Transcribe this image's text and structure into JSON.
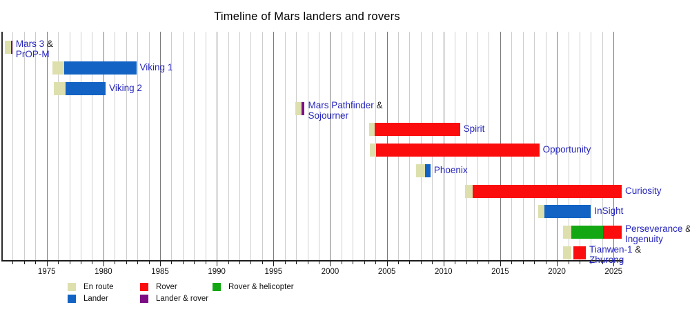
{
  "title": "Timeline of Mars landers and rovers",
  "colors": {
    "en_route": "#dde0ad",
    "lander": "#1263c4",
    "rover": "#fb0d0d",
    "lander_rover": "#7d0d85",
    "rover_helicopter": "#13a813",
    "label_text": "#2626bd",
    "grid_minor": "#cdcdcd",
    "grid_major": "#7a7a7a",
    "axis": "#1a1a1a"
  },
  "legend": {
    "items": [
      {
        "key": "en_route",
        "label": "En route"
      },
      {
        "key": "lander",
        "label": "Lander"
      },
      {
        "key": "rover",
        "label": "Rover"
      },
      {
        "key": "lander_rover",
        "label": "Lander & rover"
      },
      {
        "key": "rover_helicopter",
        "label": "Rover & helicopter"
      }
    ]
  },
  "chart_data": {
    "type": "gantt-timeline",
    "title": "Timeline of Mars landers and rovers",
    "x_axis": {
      "min_year": 1971,
      "max_year": 2026,
      "gridline_every_years": 1,
      "major_every_years": 5,
      "tick_labels": [
        1975,
        1980,
        1985,
        1990,
        1995,
        2000,
        2005,
        2010,
        2015,
        2020,
        2025
      ]
    },
    "legend_position": "bottom-left",
    "grid": true,
    "missions": [
      {
        "name": "Mars 3",
        "amp": "&",
        "name2": "PrOP-M",
        "segments": [
          {
            "type": "en_route",
            "start": 1971.3,
            "end": 1971.85
          },
          {
            "type": "lander_rover",
            "start": 1971.85,
            "end": 1971.97
          }
        ]
      },
      {
        "name": "Viking 1",
        "amp": "",
        "name2": "",
        "segments": [
          {
            "type": "en_route",
            "start": 1975.5,
            "end": 1976.55
          },
          {
            "type": "lander",
            "start": 1976.55,
            "end": 1982.9
          }
        ]
      },
      {
        "name": "Viking 2",
        "amp": "",
        "name2": "",
        "segments": [
          {
            "type": "en_route",
            "start": 1975.6,
            "end": 1976.65
          },
          {
            "type": "lander",
            "start": 1976.65,
            "end": 1980.2
          }
        ]
      },
      {
        "name": "Mars Pathfinder",
        "amp": "&",
        "name2": "Sojourner",
        "segments": [
          {
            "type": "en_route",
            "start": 1996.9,
            "end": 1997.5
          },
          {
            "type": "lander_rover",
            "start": 1997.5,
            "end": 1997.75
          }
        ]
      },
      {
        "name": "Spirit",
        "amp": "",
        "name2": "",
        "segments": [
          {
            "type": "en_route",
            "start": 2003.45,
            "end": 2003.95
          },
          {
            "type": "rover",
            "start": 2003.95,
            "end": 2011.45
          }
        ]
      },
      {
        "name": "Opportunity",
        "amp": "",
        "name2": "",
        "segments": [
          {
            "type": "en_route",
            "start": 2003.5,
            "end": 2004.05
          },
          {
            "type": "rover",
            "start": 2004.05,
            "end": 2018.45
          }
        ]
      },
      {
        "name": "Phoenix",
        "amp": "",
        "name2": "",
        "segments": [
          {
            "type": "en_route",
            "start": 2007.6,
            "end": 2008.4
          },
          {
            "type": "lander",
            "start": 2008.4,
            "end": 2008.85
          }
        ]
      },
      {
        "name": "Curiosity",
        "amp": "",
        "name2": "",
        "segments": [
          {
            "type": "en_route",
            "start": 2011.9,
            "end": 2012.6
          },
          {
            "type": "rover",
            "start": 2012.6,
            "end": 2025.72
          }
        ]
      },
      {
        "name": "InSight",
        "amp": "",
        "name2": "",
        "segments": [
          {
            "type": "en_route",
            "start": 2018.35,
            "end": 2018.9
          },
          {
            "type": "lander",
            "start": 2018.9,
            "end": 2023.0
          }
        ]
      },
      {
        "name": "Perseverance",
        "amp": "&",
        "name2": "Ingenuity",
        "segments": [
          {
            "type": "en_route",
            "start": 2020.55,
            "end": 2021.3
          },
          {
            "type": "rover_helicopter",
            "start": 2021.3,
            "end": 2024.05
          },
          {
            "type": "rover",
            "start": 2024.05,
            "end": 2025.72
          }
        ]
      },
      {
        "name": "Tianwen-1",
        "amp": "&",
        "name2": "Zhurong",
        "segments": [
          {
            "type": "en_route",
            "start": 2020.55,
            "end": 2021.25
          },
          {
            "type": "rover",
            "start": 2021.45,
            "end": 2022.55
          }
        ]
      }
    ]
  }
}
